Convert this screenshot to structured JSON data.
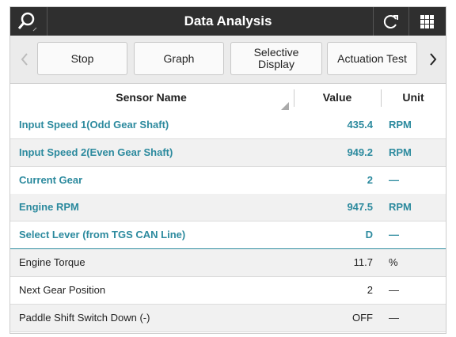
{
  "header": {
    "title": "Data Analysis"
  },
  "toolbar": {
    "buttons": [
      "Stop",
      "Graph",
      "Selective Display",
      "Actuation Test"
    ]
  },
  "table": {
    "columns": [
      "Sensor Name",
      "Value",
      "Unit"
    ],
    "rows": [
      [
        "Input Speed 1(Odd Gear Shaft)",
        "435.4",
        "RPM"
      ],
      [
        "Input Speed 2(Even Gear Shaft)",
        "949.2",
        "RPM"
      ],
      [
        "Current Gear",
        "2",
        "—"
      ],
      [
        "Engine RPM",
        "947.5",
        "RPM"
      ],
      [
        "Select Lever (from TGS CAN Line)",
        "D",
        "—"
      ],
      [
        "Engine Torque",
        "11.7",
        "%"
      ],
      [
        "Next Gear Position",
        "2",
        "—"
      ],
      [
        "Paddle Shift Switch Down (-)",
        "OFF",
        "—"
      ]
    ]
  }
}
